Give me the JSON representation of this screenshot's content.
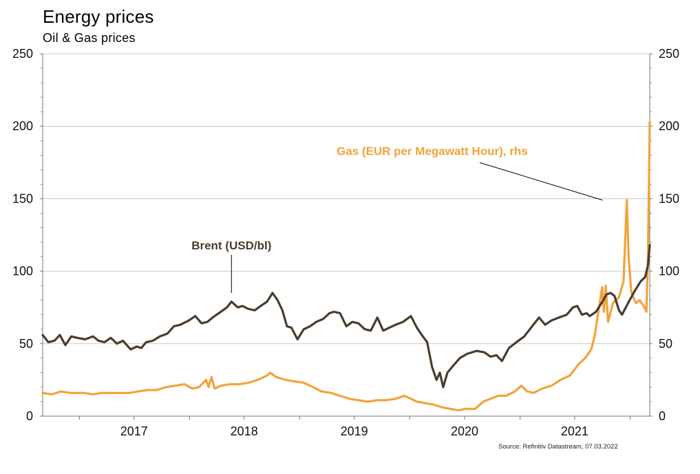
{
  "title": "Energy prices",
  "subtitle": "Oil & Gas prices",
  "source": "Source: Refinitiv Datastream, 07.03.2022",
  "colors": {
    "brent": "#4a3c2c",
    "gas": "#f2a33a",
    "grid": "#c8c8c8",
    "axis": "#777777"
  },
  "chart_data": {
    "type": "line",
    "title": "Energy prices",
    "subtitle": "Oil & Gas prices",
    "x_axis": {
      "range": [
        "2016-09-01",
        "2022-03-07"
      ],
      "year_labels": [
        "2017",
        "2018",
        "2019",
        "2020",
        "2021"
      ]
    },
    "y_axis_left": {
      "ylim": [
        0,
        250
      ],
      "ticks": [
        "0",
        "50",
        "100",
        "150",
        "200",
        "250"
      ]
    },
    "y_axis_right": {
      "ylim": [
        0,
        250
      ],
      "ticks": [
        "0",
        "50",
        "100",
        "150",
        "200",
        "250"
      ]
    },
    "grid": true,
    "annotations": [
      {
        "text": "Brent (USD/bl)",
        "series": "Brent (USD/bl)",
        "point": [
          "2018-05-20",
          84
        ]
      },
      {
        "text": "Gas (EUR per Megawatt Hour), rhs",
        "series": "Gas (EUR per Megawatt Hour), rhs",
        "point": [
          "2021-10-06",
          149
        ]
      }
    ],
    "series": [
      {
        "name": "Brent (USD/bl)",
        "axis": "left",
        "color": "#4a3c2c",
        "points": [
          [
            "2016-09-01",
            56
          ],
          [
            "2016-09-20",
            51
          ],
          [
            "2016-10-10",
            52
          ],
          [
            "2016-10-28",
            56
          ],
          [
            "2016-11-15",
            49
          ],
          [
            "2016-12-05",
            55
          ],
          [
            "2016-12-25",
            54
          ],
          [
            "2017-01-20",
            53
          ],
          [
            "2017-02-15",
            55
          ],
          [
            "2017-03-05",
            52
          ],
          [
            "2017-03-25",
            51
          ],
          [
            "2017-04-15",
            54
          ],
          [
            "2017-05-05",
            50
          ],
          [
            "2017-05-25",
            52
          ],
          [
            "2017-06-20",
            46
          ],
          [
            "2017-07-10",
            48
          ],
          [
            "2017-07-25",
            47
          ],
          [
            "2017-08-10",
            51
          ],
          [
            "2017-09-01",
            52
          ],
          [
            "2017-09-25",
            55
          ],
          [
            "2017-10-20",
            57
          ],
          [
            "2017-11-10",
            62
          ],
          [
            "2017-12-01",
            63
          ],
          [
            "2017-12-30",
            66
          ],
          [
            "2018-01-20",
            69
          ],
          [
            "2018-02-10",
            64
          ],
          [
            "2018-03-01",
            65
          ],
          [
            "2018-03-25",
            69
          ],
          [
            "2018-04-15",
            72
          ],
          [
            "2018-05-05",
            75
          ],
          [
            "2018-05-20",
            79
          ],
          [
            "2018-06-10",
            75
          ],
          [
            "2018-06-25",
            76
          ],
          [
            "2018-07-15",
            74
          ],
          [
            "2018-08-05",
            73
          ],
          [
            "2018-08-25",
            76
          ],
          [
            "2018-09-15",
            79
          ],
          [
            "2018-10-03",
            85
          ],
          [
            "2018-10-20",
            80
          ],
          [
            "2018-11-05",
            73
          ],
          [
            "2018-11-20",
            62
          ],
          [
            "2018-12-05",
            61
          ],
          [
            "2018-12-25",
            53
          ],
          [
            "2019-01-15",
            60
          ],
          [
            "2019-02-05",
            62
          ],
          [
            "2019-02-25",
            65
          ],
          [
            "2019-03-20",
            67
          ],
          [
            "2019-04-10",
            71
          ],
          [
            "2019-04-25",
            72
          ],
          [
            "2019-05-15",
            71
          ],
          [
            "2019-06-05",
            62
          ],
          [
            "2019-06-25",
            65
          ],
          [
            "2019-07-15",
            64
          ],
          [
            "2019-08-05",
            60
          ],
          [
            "2019-08-25",
            59
          ],
          [
            "2019-09-16",
            68
          ],
          [
            "2019-10-05",
            59
          ],
          [
            "2019-10-25",
            61
          ],
          [
            "2019-11-15",
            63
          ],
          [
            "2019-12-10",
            65
          ],
          [
            "2020-01-05",
            69
          ],
          [
            "2020-01-25",
            61
          ],
          [
            "2020-02-10",
            56
          ],
          [
            "2020-02-28",
            51
          ],
          [
            "2020-03-15",
            34
          ],
          [
            "2020-03-30",
            25
          ],
          [
            "2020-04-10",
            30
          ],
          [
            "2020-04-21",
            20
          ],
          [
            "2020-05-05",
            30
          ],
          [
            "2020-05-25",
            35
          ],
          [
            "2020-06-15",
            40
          ],
          [
            "2020-07-10",
            43
          ],
          [
            "2020-08-10",
            45
          ],
          [
            "2020-09-05",
            44
          ],
          [
            "2020-09-25",
            41
          ],
          [
            "2020-10-15",
            42
          ],
          [
            "2020-11-02",
            38
          ],
          [
            "2020-11-25",
            47
          ],
          [
            "2020-12-20",
            51
          ],
          [
            "2021-01-15",
            55
          ],
          [
            "2021-02-10",
            62
          ],
          [
            "2021-03-05",
            68
          ],
          [
            "2021-03-25",
            63
          ],
          [
            "2021-04-15",
            66
          ],
          [
            "2021-05-10",
            68
          ],
          [
            "2021-06-05",
            70
          ],
          [
            "2021-06-25",
            75
          ],
          [
            "2021-07-10",
            76
          ],
          [
            "2021-07-25",
            70
          ],
          [
            "2021-08-10",
            71
          ],
          [
            "2021-08-20",
            69
          ],
          [
            "2021-09-10",
            72
          ],
          [
            "2021-09-28",
            78
          ],
          [
            "2021-10-15",
            84
          ],
          [
            "2021-10-28",
            85
          ],
          [
            "2021-11-10",
            83
          ],
          [
            "2021-11-25",
            73
          ],
          [
            "2021-12-05",
            70
          ],
          [
            "2021-12-25",
            78
          ],
          [
            "2022-01-15",
            86
          ],
          [
            "2022-02-05",
            93
          ],
          [
            "2022-02-20",
            96
          ],
          [
            "2022-03-01",
            104
          ],
          [
            "2022-03-07",
            118
          ]
        ]
      },
      {
        "name": "Gas (EUR per Megawatt Hour), rhs",
        "axis": "right",
        "color": "#f2a33a",
        "points": [
          [
            "2016-09-01",
            16
          ],
          [
            "2016-10-01",
            15
          ],
          [
            "2016-11-01",
            17
          ],
          [
            "2016-12-01",
            16
          ],
          [
            "2017-01-15",
            16
          ],
          [
            "2017-02-15",
            15
          ],
          [
            "2017-03-15",
            16
          ],
          [
            "2017-04-15",
            16
          ],
          [
            "2017-05-15",
            16
          ],
          [
            "2017-06-15",
            16
          ],
          [
            "2017-07-15",
            17
          ],
          [
            "2017-08-15",
            18
          ],
          [
            "2017-09-15",
            18
          ],
          [
            "2017-10-15",
            20
          ],
          [
            "2017-11-15",
            21
          ],
          [
            "2017-12-15",
            22
          ],
          [
            "2018-01-10",
            19
          ],
          [
            "2018-02-01",
            20
          ],
          [
            "2018-02-25",
            25
          ],
          [
            "2018-03-05",
            20
          ],
          [
            "2018-03-15",
            27
          ],
          [
            "2018-03-25",
            19
          ],
          [
            "2018-04-15",
            21
          ],
          [
            "2018-05-15",
            22
          ],
          [
            "2018-06-15",
            22
          ],
          [
            "2018-07-15",
            23
          ],
          [
            "2018-08-15",
            25
          ],
          [
            "2018-09-15",
            28
          ],
          [
            "2018-09-25",
            30
          ],
          [
            "2018-10-15",
            27
          ],
          [
            "2018-11-15",
            25
          ],
          [
            "2018-12-15",
            24
          ],
          [
            "2019-01-15",
            23
          ],
          [
            "2019-02-15",
            20
          ],
          [
            "2019-03-15",
            17
          ],
          [
            "2019-04-15",
            16
          ],
          [
            "2019-05-15",
            14
          ],
          [
            "2019-06-15",
            12
          ],
          [
            "2019-07-15",
            11
          ],
          [
            "2019-08-15",
            10
          ],
          [
            "2019-09-15",
            11
          ],
          [
            "2019-10-15",
            11
          ],
          [
            "2019-11-15",
            12
          ],
          [
            "2019-12-15",
            14
          ],
          [
            "2020-01-05",
            12
          ],
          [
            "2020-01-25",
            10
          ],
          [
            "2020-02-20",
            9
          ],
          [
            "2020-03-20",
            8
          ],
          [
            "2020-04-20",
            6
          ],
          [
            "2020-05-15",
            5
          ],
          [
            "2020-06-10",
            4
          ],
          [
            "2020-07-05",
            5
          ],
          [
            "2020-08-05",
            5
          ],
          [
            "2020-09-01",
            10
          ],
          [
            "2020-09-25",
            12
          ],
          [
            "2020-10-20",
            14
          ],
          [
            "2020-11-15",
            14
          ],
          [
            "2020-12-15",
            17
          ],
          [
            "2021-01-05",
            21
          ],
          [
            "2021-01-25",
            17
          ],
          [
            "2021-02-15",
            16
          ],
          [
            "2021-03-15",
            19
          ],
          [
            "2021-04-15",
            21
          ],
          [
            "2021-05-15",
            25
          ],
          [
            "2021-06-15",
            28
          ],
          [
            "2021-07-15",
            36
          ],
          [
            "2021-08-05",
            40
          ],
          [
            "2021-08-25",
            46
          ],
          [
            "2021-09-05",
            55
          ],
          [
            "2021-09-20",
            75
          ],
          [
            "2021-09-30",
            89
          ],
          [
            "2021-10-06",
            72
          ],
          [
            "2021-10-12",
            90
          ],
          [
            "2021-10-20",
            65
          ],
          [
            "2021-11-05",
            78
          ],
          [
            "2021-11-25",
            82
          ],
          [
            "2021-12-10",
            93
          ],
          [
            "2021-12-21",
            149
          ],
          [
            "2021-12-27",
            110
          ],
          [
            "2022-01-05",
            85
          ],
          [
            "2022-01-20",
            78
          ],
          [
            "2022-02-01",
            80
          ],
          [
            "2022-02-15",
            76
          ],
          [
            "2022-02-24",
            72
          ],
          [
            "2022-03-01",
            110
          ],
          [
            "2022-03-07",
            203
          ]
        ]
      }
    ]
  }
}
